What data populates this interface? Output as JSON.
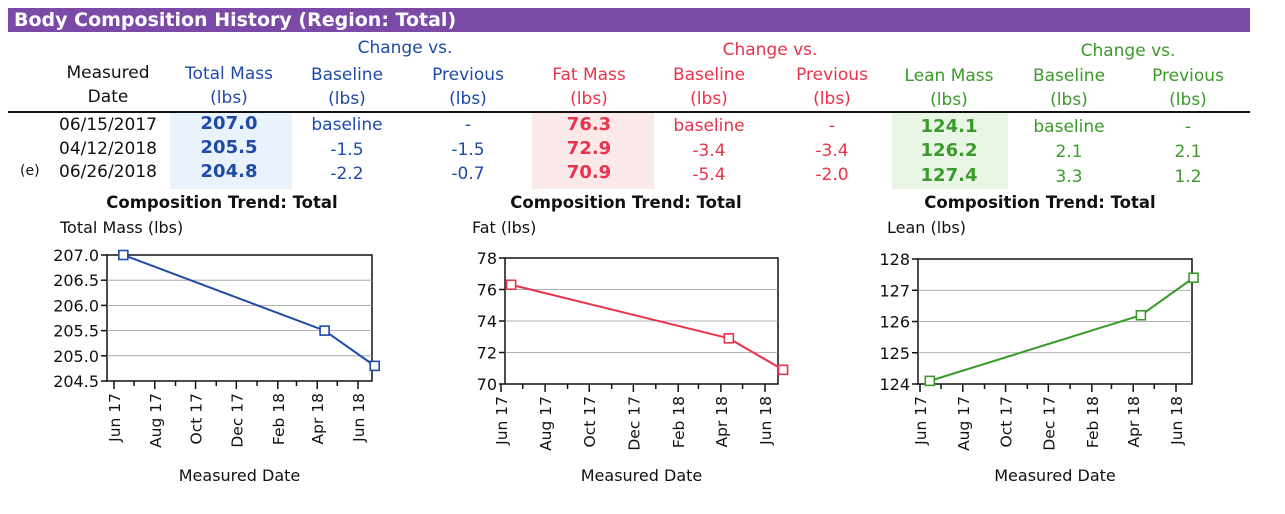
{
  "title": "Body Composition History (Region: Total)",
  "table": {
    "headers": {
      "measured_date": [
        "Measured",
        "Date"
      ],
      "total_mass": [
        "Total Mass",
        "(lbs)"
      ],
      "change_vs_1": "Change vs.",
      "change_vs_2": "Change vs.",
      "change_vs_3": "Change vs.",
      "baseline": [
        "Baseline",
        "(lbs)"
      ],
      "previous": [
        "Previous",
        "(lbs)"
      ],
      "fat_mass": [
        "Fat Mass",
        "(lbs)"
      ],
      "lean_mass": [
        "Lean Mass",
        "(lbs)"
      ]
    },
    "row_marker": "(e)",
    "rows": [
      {
        "date": "06/15/2017",
        "total": "207.0",
        "total_base": "baseline",
        "total_prev": "-",
        "fat": "76.3",
        "fat_base": "baseline",
        "fat_prev": "-",
        "lean": "124.1",
        "lean_base": "baseline",
        "lean_prev": "-"
      },
      {
        "date": "04/12/2018",
        "total": "205.5",
        "total_base": "-1.5",
        "total_prev": "-1.5",
        "fat": "72.9",
        "fat_base": "-3.4",
        "fat_prev": "-3.4",
        "lean": "126.2",
        "lean_base": "2.1",
        "lean_prev": "2.1"
      },
      {
        "date": "06/26/2018",
        "total": "204.8",
        "total_base": "-2.2",
        "total_prev": "-0.7",
        "fat": "70.9",
        "fat_base": "-5.4",
        "fat_prev": "-2.0",
        "lean": "127.4",
        "lean_base": "3.3",
        "lean_prev": "1.2"
      }
    ]
  },
  "colors": {
    "total": "#1f4aa8",
    "fat": "#e8334a",
    "lean": "#3a9a2a",
    "title_bar": "#7b4aa6"
  },
  "chart_data": [
    {
      "type": "line",
      "title": "Composition Trend: Total",
      "ylabel": "Total Mass (lbs)",
      "xlabel": "Measured Date",
      "x": [
        "2017-06-15",
        "2018-04-12",
        "2018-06-26"
      ],
      "values": [
        207.0,
        205.5,
        204.8
      ],
      "ylim": [
        204.5,
        207.0
      ],
      "yticks": [
        "204.5",
        "205.0",
        "205.5",
        "206.0",
        "206.5",
        "207.0"
      ],
      "xticks": [
        "Jun 17",
        "Aug 17",
        "Oct 17",
        "Dec 17",
        "Feb 18",
        "Apr 18",
        "Jun 18"
      ],
      "grid": true,
      "color": "#1f4aa8"
    },
    {
      "type": "line",
      "title": "Composition Trend: Total",
      "ylabel": "Fat (lbs)",
      "xlabel": "Measured Date",
      "x": [
        "2017-06-15",
        "2018-04-12",
        "2018-06-26"
      ],
      "values": [
        76.3,
        72.9,
        70.9
      ],
      "ylim": [
        70,
        78
      ],
      "yticks": [
        "70",
        "72",
        "74",
        "76",
        "78"
      ],
      "xticks": [
        "Jun 17",
        "Aug 17",
        "Oct 17",
        "Dec 17",
        "Feb 18",
        "Apr 18",
        "Jun 18"
      ],
      "grid": true,
      "color": "#e8334a"
    },
    {
      "type": "line",
      "title": "Composition Trend: Total",
      "ylabel": "Lean (lbs)",
      "xlabel": "Measured Date",
      "x": [
        "2017-06-15",
        "2018-04-12",
        "2018-06-26"
      ],
      "values": [
        124.1,
        126.2,
        127.4
      ],
      "ylim": [
        124,
        128
      ],
      "yticks": [
        "124",
        "125",
        "126",
        "127",
        "128"
      ],
      "xticks": [
        "Jun 17",
        "Aug 17",
        "Oct 17",
        "Dec 17",
        "Feb 18",
        "Apr 18",
        "Jun 18"
      ],
      "grid": true,
      "color": "#3a9a2a"
    }
  ]
}
